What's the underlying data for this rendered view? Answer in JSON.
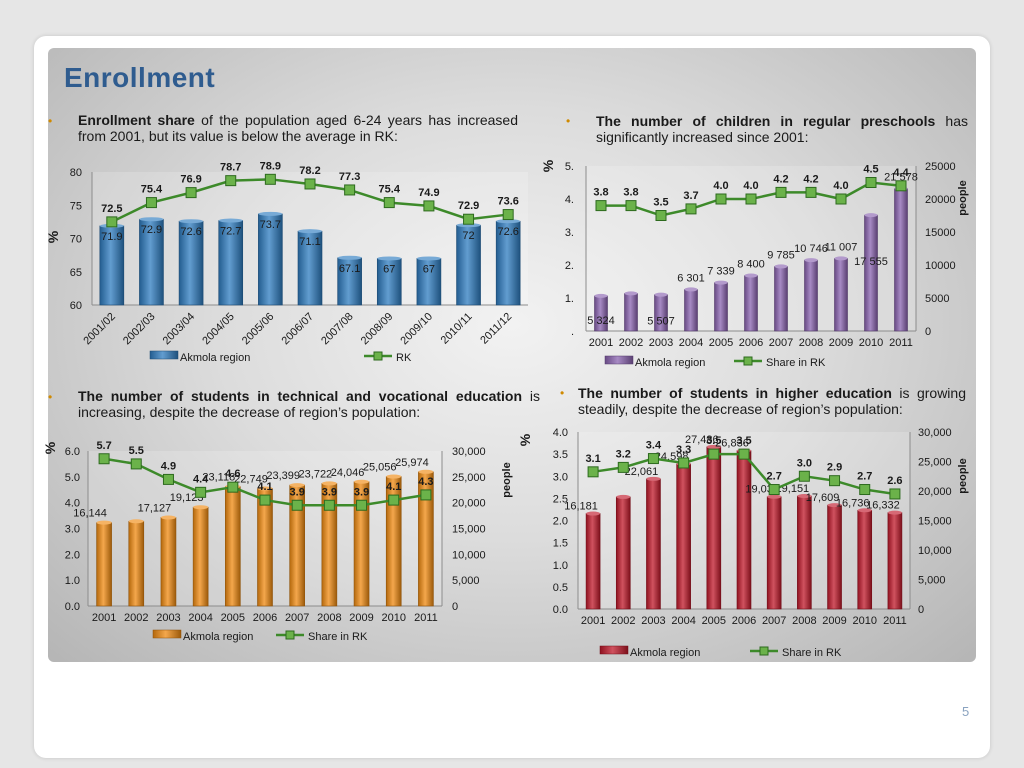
{
  "slide": {
    "title": "Enrollment",
    "page_number": "5"
  },
  "texts": {
    "t1": {
      "bold": "Enrollment share",
      "rest": " of the population aged 6-24 years has increased from 2001, but its value is below the average in RK:"
    },
    "t2": {
      "bold": "The number of children in regular preschools",
      "rest": " has significantly increased since 2001:"
    },
    "t3": {
      "bold": "The number of students in technical and vocational education",
      "rest": " is increasing, despite the decrease of region’s population:"
    },
    "t4": {
      "bold": "The number of students in higher education",
      "rest": " is growing steadily, despite the decrease of region’s population:"
    }
  },
  "colors": {
    "title": "#2f5c8f",
    "bullet": "#d08a00",
    "line": "#3d8a2a",
    "marker": "#6bb24a"
  },
  "chart_data": [
    {
      "id": "c1",
      "type": "bar+line",
      "categories": [
        "2001/02",
        "2002/03",
        "2003/04",
        "2004/05",
        "2005/06",
        "2006/07",
        "2007/08",
        "2008/09",
        "2009/10",
        "2010/11",
        "2011/12"
      ],
      "bar_values": [
        71.9,
        72.9,
        72.6,
        72.7,
        73.7,
        71.1,
        67.1,
        67,
        67,
        72,
        72.6
      ],
      "bar_labels": [
        "71.9",
        "72.9",
        "72.6",
        "72.7",
        "73.7",
        "71.1",
        "67.1",
        "67",
        "67",
        "72",
        "72.6"
      ],
      "line_values": [
        72.5,
        75.4,
        76.9,
        78.7,
        78.9,
        78.2,
        77.3,
        75.4,
        74.9,
        72.9,
        73.6
      ],
      "line_labels": [
        "72.5",
        "75.4",
        "76.9",
        "78.7",
        "78.9",
        "78.2",
        "77.3",
        "75.4",
        "74.9",
        "72.9",
        "73.6"
      ],
      "ylim": [
        60,
        80
      ],
      "yticks": [
        "60",
        "65",
        "70",
        "75",
        "80"
      ],
      "ylabel": "%",
      "legend": [
        "Akmola region",
        "RK"
      ],
      "bar_color": "#2e7cc0"
    },
    {
      "id": "c2",
      "type": "bar+line",
      "categories": [
        "2001",
        "2002",
        "2003",
        "2004",
        "2005",
        "2006",
        "2007",
        "2008",
        "2009",
        "2010",
        "2011"
      ],
      "bar_values": [
        5324,
        5700,
        5507,
        6301,
        7339,
        8400,
        9785,
        10746,
        11007,
        17555,
        21578
      ],
      "bar_labels": [
        "5 324",
        "",
        "5 507",
        "6 301",
        "7 339",
        "8 400",
        "9 785",
        "10 746",
        "11 007",
        "17 555",
        "21 578"
      ],
      "line_values": [
        3.8,
        3.8,
        3.5,
        3.7,
        4.0,
        4.0,
        4.2,
        4.2,
        4.0,
        4.5,
        4.4
      ],
      "line_labels": [
        "3.8",
        "3.8",
        "3.5",
        "3.7",
        "4.0",
        "4.0",
        "4.2",
        "4.2",
        "4.0",
        "4.5",
        "4.4"
      ],
      "ylim_left": [
        0,
        5
      ],
      "ylim_right": [
        0,
        25000
      ],
      "yticks_left": [
        ".",
        "1.",
        "2.",
        "3.",
        "4.",
        "5."
      ],
      "yticks_right": [
        "0",
        "5000",
        "10000",
        "15000",
        "20000",
        "25000"
      ],
      "ylabel_left": "%",
      "ylabel_right": "people",
      "legend": [
        "Akmola region",
        "Share in RK"
      ],
      "bar_color": "#8a63b0"
    },
    {
      "id": "c3",
      "type": "bar+line",
      "categories": [
        "2001",
        "2002",
        "2003",
        "2004",
        "2005",
        "2006",
        "2007",
        "2008",
        "2009",
        "2010",
        "2011"
      ],
      "bar_values": [
        16144,
        16400,
        17127,
        19123,
        23118,
        22749,
        23399,
        23722,
        24046,
        25056,
        25974
      ],
      "bar_labels": [
        "16,144",
        "",
        "17,127",
        "19,123",
        "23,118",
        "22,749",
        "23,399",
        "23,722",
        "24,046",
        "25,056",
        "25,974"
      ],
      "line_values": [
        5.7,
        5.5,
        4.9,
        4.4,
        4.6,
        4.1,
        3.9,
        3.9,
        3.9,
        4.1,
        4.3
      ],
      "line_labels": [
        "5.7",
        "5.5",
        "4.9",
        "4.4",
        "4.6",
        "4.1",
        "3.9",
        "3.9",
        "3.9",
        "4.1",
        "4.3"
      ],
      "ylim_left": [
        0,
        6
      ],
      "ylim_right": [
        0,
        30000
      ],
      "yticks_left": [
        "0.0",
        "1.0",
        "2.0",
        "3.0",
        "4.0",
        "5.0",
        "6.0"
      ],
      "yticks_right": [
        "0",
        "5,000",
        "10,000",
        "15,000",
        "20,000",
        "25,000",
        "30,000"
      ],
      "ylabel_left": "%",
      "ylabel_right": "people",
      "legend": [
        "Akmola region",
        "Share in RK"
      ],
      "bar_color": "#f08a10"
    },
    {
      "id": "c4",
      "type": "bar+line",
      "categories": [
        "2001",
        "2002",
        "2003",
        "2004",
        "2005",
        "2006",
        "2007",
        "2008",
        "2009",
        "2010",
        "2011"
      ],
      "bar_values": [
        16181,
        19000,
        22061,
        24598,
        27486,
        26836,
        19030,
        19151,
        17609,
        16736,
        16332
      ],
      "bar_labels": [
        "16,181",
        "",
        "22,061",
        "24,598",
        "27,486",
        "26,836",
        "19,030",
        "19,151",
        "17,609",
        "16,736",
        "16,332"
      ],
      "line_values": [
        3.1,
        3.2,
        3.4,
        3.3,
        3.5,
        3.5,
        2.7,
        3.0,
        2.9,
        2.7,
        2.6
      ],
      "line_labels": [
        "3.1",
        "3.2",
        "3.4",
        "3.3",
        "3.5",
        "3.5",
        "2.7",
        "3.0",
        "2.9",
        "2.7",
        "2.6"
      ],
      "ylim_left": [
        0,
        4
      ],
      "ylim_right": [
        0,
        30000
      ],
      "yticks_left": [
        "0.0",
        "0.5",
        "1.0",
        "1.5",
        "2.0",
        "2.5",
        "3.0",
        "3.5",
        "4.0"
      ],
      "yticks_right": [
        "0",
        "5,000",
        "10,000",
        "15,000",
        "20,000",
        "25,000",
        "30,000"
      ],
      "ylabel_left": "%",
      "ylabel_right": "people",
      "legend": [
        "Akmola region",
        "Share in RK"
      ],
      "bar_color": "#c0182a"
    }
  ]
}
